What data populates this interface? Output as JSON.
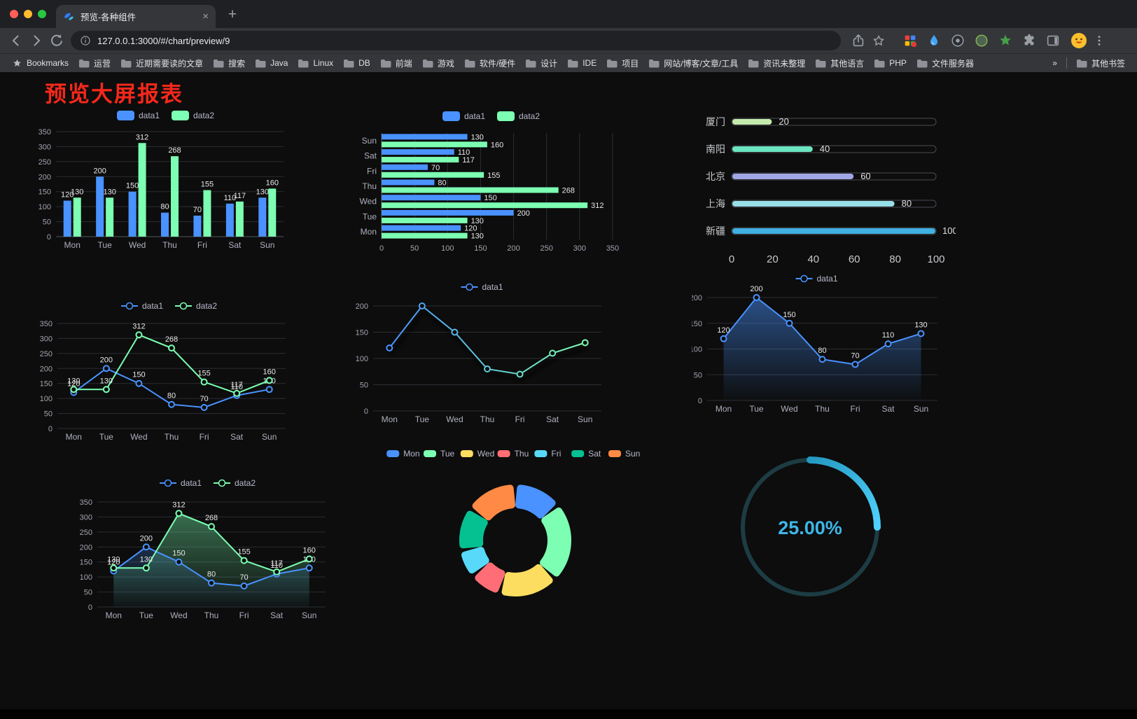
{
  "browser": {
    "tab_title": "预览-各种组件",
    "tab_close": "×",
    "new_tab": "+",
    "url": "127.0.0.1:3000/#/chart/preview/9",
    "bookmarks_label": "Bookmarks",
    "bookmark_folders": [
      "运营",
      "近期需要读的文章",
      "搜索",
      "Java",
      "Linux",
      "DB",
      "前端",
      "游戏",
      "软件/硬件",
      "设计",
      "IDE",
      "项目",
      "网站/博客/文章/工具",
      "资讯未整理",
      "其他语言",
      "PHP",
      "文件服务器"
    ],
    "bookmarks_overflow": "»",
    "other_bookmarks": "其他书签"
  },
  "page": {
    "title": "预览大屏报表",
    "title_color": "#f5281b"
  },
  "chart_data": [
    {
      "id": "bar-vertical",
      "type": "bar",
      "categories": [
        "Mon",
        "Tue",
        "Wed",
        "Thu",
        "Fri",
        "Sat",
        "Sun"
      ],
      "series": [
        {
          "name": "data1",
          "color": "#4992ff",
          "values": [
            120,
            200,
            150,
            80,
            70,
            110,
            130
          ]
        },
        {
          "name": "data2",
          "color": "#7cffb2",
          "values": [
            130,
            130,
            312,
            268,
            155,
            117,
            160
          ]
        }
      ],
      "ylim": [
        0,
        350
      ],
      "yticks": [
        0,
        50,
        100,
        150,
        200,
        250,
        300,
        350
      ],
      "legend": true,
      "value_labels": true
    },
    {
      "id": "bar-horizontal",
      "type": "hbar",
      "categories": [
        "Mon",
        "Tue",
        "Wed",
        "Thu",
        "Fri",
        "Sat",
        "Sun"
      ],
      "series": [
        {
          "name": "data1",
          "color": "#4992ff",
          "values": [
            120,
            200,
            150,
            80,
            70,
            110,
            130
          ]
        },
        {
          "name": "data2",
          "color": "#7cffb2",
          "values": [
            130,
            130,
            312,
            268,
            155,
            117,
            160
          ]
        }
      ],
      "xlim": [
        0,
        350
      ],
      "xticks": [
        0,
        50,
        100,
        150,
        200,
        250,
        300,
        350
      ],
      "legend": true,
      "value_labels": true
    },
    {
      "id": "capsule",
      "type": "capsule",
      "categories": [
        "厦门",
        "南阳",
        "北京",
        "上海",
        "新疆"
      ],
      "values": [
        20,
        40,
        60,
        80,
        100
      ],
      "colors": [
        "#c4ebad",
        "#6be6c1",
        "#a0a7e6",
        "#96dee8",
        "#3fb1e3"
      ],
      "xlim": [
        0,
        100
      ],
      "xticks": [
        0,
        20,
        40,
        60,
        80,
        100
      ],
      "value_labels": true
    },
    {
      "id": "line-two",
      "type": "line",
      "categories": [
        "Mon",
        "Tue",
        "Wed",
        "Thu",
        "Fri",
        "Sat",
        "Sun"
      ],
      "series": [
        {
          "name": "data1",
          "color": "#4992ff",
          "values": [
            120,
            200,
            150,
            80,
            70,
            110,
            130
          ]
        },
        {
          "name": "data2",
          "color": "#7cffb2",
          "values": [
            130,
            130,
            312,
            268,
            155,
            117,
            160
          ]
        }
      ],
      "ylim": [
        0,
        350
      ],
      "yticks": [
        0,
        50,
        100,
        150,
        200,
        250,
        300,
        350
      ],
      "legend": true,
      "value_labels": true
    },
    {
      "id": "line-gradient",
      "type": "line",
      "categories": [
        "Mon",
        "Tue",
        "Wed",
        "Thu",
        "Fri",
        "Sat",
        "Sun"
      ],
      "series": [
        {
          "name": "data1",
          "color": "#4992ff",
          "color2": "#7cffb2",
          "values": [
            120,
            200,
            150,
            80,
            70,
            110,
            130
          ]
        }
      ],
      "ylim": [
        0,
        200
      ],
      "yticks": [
        0,
        50,
        100,
        150,
        200
      ],
      "legend": true,
      "value_labels": false,
      "gradient": true,
      "shadow": true
    },
    {
      "id": "area-single",
      "type": "line",
      "categories": [
        "Mon",
        "Tue",
        "Wed",
        "Thu",
        "Fri",
        "Sat",
        "Sun"
      ],
      "series": [
        {
          "name": "data1",
          "color": "#4992ff",
          "values": [
            120,
            200,
            150,
            80,
            70,
            110,
            130
          ],
          "area": true,
          "area_opacity": 0.5
        }
      ],
      "ylim": [
        0,
        200
      ],
      "yticks": [
        0,
        50,
        100,
        150,
        200
      ],
      "legend": true,
      "value_labels": true
    },
    {
      "id": "line-area-two",
      "type": "line",
      "categories": [
        "Mon",
        "Tue",
        "Wed",
        "Thu",
        "Fri",
        "Sat",
        "Sun"
      ],
      "series": [
        {
          "name": "data1",
          "color": "#4992ff",
          "values": [
            120,
            200,
            150,
            80,
            70,
            110,
            130
          ],
          "area": true,
          "area_opacity": 0.25
        },
        {
          "name": "data2",
          "color": "#7cffb2",
          "values": [
            130,
            130,
            312,
            268,
            155,
            117,
            160
          ],
          "area": true,
          "area_opacity": 0.4
        }
      ],
      "ylim": [
        0,
        350
      ],
      "yticks": [
        0,
        50,
        100,
        150,
        200,
        250,
        300,
        350
      ],
      "legend": true,
      "value_labels": true
    },
    {
      "id": "donut",
      "type": "donut",
      "categories": [
        "Mon",
        "Tue",
        "Wed",
        "Thu",
        "Fri",
        "Sat",
        "Sun"
      ],
      "values": [
        120,
        200,
        150,
        80,
        70,
        110,
        130
      ],
      "colors": [
        "#4992ff",
        "#7cffb2",
        "#fddd60",
        "#ff6e76",
        "#58d9f9",
        "#05c091",
        "#ff8a45"
      ],
      "legend": true
    },
    {
      "id": "gauge",
      "type": "gauge",
      "value": 25,
      "label": "25.00%",
      "track_color": "#1d3c44",
      "color_start": "#2499c2",
      "color_end": "#4fd2fd",
      "text_color": "#3eb7e8"
    }
  ]
}
